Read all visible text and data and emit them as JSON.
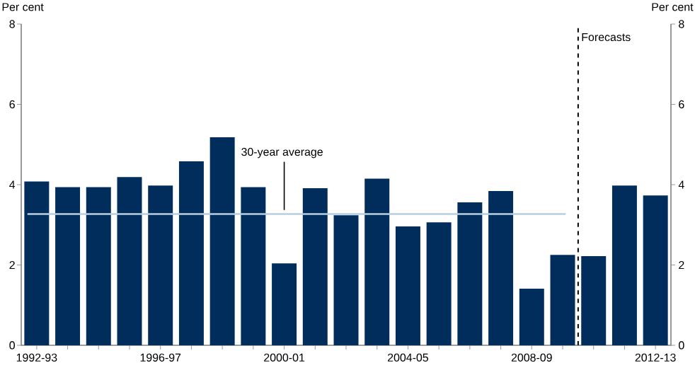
{
  "chart_data": {
    "type": "bar",
    "categories": [
      "1992-93",
      null,
      null,
      null,
      "1996-97",
      null,
      null,
      null,
      "2000-01",
      null,
      null,
      null,
      "2004-05",
      null,
      null,
      null,
      "2008-09",
      null,
      null,
      null,
      "2012-13"
    ],
    "values": [
      4.08,
      3.94,
      3.94,
      4.19,
      3.98,
      4.58,
      5.18,
      3.94,
      2.04,
      3.91,
      3.24,
      4.15,
      2.96,
      3.06,
      3.56,
      3.84,
      1.41,
      2.25,
      2.22,
      3.98,
      3.73
    ],
    "color": "#002d5c",
    "ylabel": "Per cent",
    "y2label": "Per cent",
    "ylim": [
      0,
      8
    ],
    "yticks": [
      0,
      2,
      4,
      6,
      8
    ],
    "y2lim": [
      0,
      8
    ],
    "y2ticks": [
      0,
      2,
      4,
      6,
      8
    ],
    "ref_lines": [
      {
        "axis": "y",
        "value": 3.27,
        "label": "30-year average",
        "color": "#b8cfe0",
        "line_style": "solid"
      }
    ],
    "annotations": [
      "Forecasts"
    ],
    "grid": false
  }
}
